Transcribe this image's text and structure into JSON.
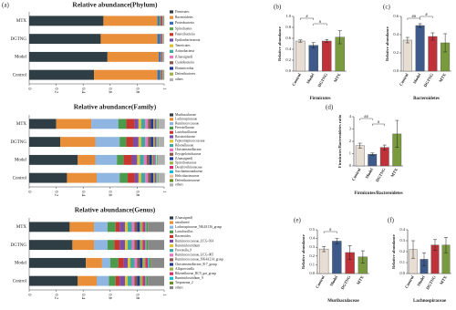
{
  "chart_data": [
    {
      "type": "stacked_barh",
      "label": "(a)",
      "title": "Relative abundance(Phylum)",
      "categories": [
        "MTX",
        "DGTNG",
        "Model",
        "Control"
      ],
      "xlim": [
        0,
        1
      ],
      "xticks": [
        0,
        0.2,
        0.4,
        0.6,
        0.8,
        1
      ],
      "series": [
        {
          "name": "Firmicutes",
          "color": "#2e3e44",
          "values": [
            0.55,
            0.53,
            0.58,
            0.48
          ]
        },
        {
          "name": "Bacteroidetes",
          "color": "#e98f3a",
          "values": [
            0.4,
            0.42,
            0.38,
            0.47
          ]
        },
        {
          "name": "Proteobacteria",
          "color": "#3b6fb6",
          "values": [
            0.015,
            0.02,
            0.015,
            0.02
          ]
        },
        {
          "name": "Spirochaetes",
          "color": "#5fa858",
          "values": [
            0.01,
            0.005,
            0.004,
            0.008
          ]
        },
        {
          "name": "Patescibacteria",
          "color": "#c8372d",
          "values": [
            0.008,
            0.006,
            0.006,
            0.006
          ]
        },
        {
          "name": "Epsilonbacteraeota",
          "color": "#7b4ea3",
          "values": [
            0.006,
            0.006,
            0.004,
            0.005
          ]
        },
        {
          "name": "Tenericutes",
          "color": "#d8c43a",
          "values": [
            0.004,
            0.004,
            0.003,
            0.004
          ]
        },
        {
          "name": "Actinobacteria",
          "color": "#3fa8a0",
          "values": [
            0.003,
            0.003,
            0.003,
            0.003
          ]
        },
        {
          "name": "(Unassigned)",
          "color": "#e377c2",
          "values": [
            0.002,
            0.002,
            0.002,
            0.002
          ]
        },
        {
          "name": "Cyanobacteria",
          "color": "#8c564b",
          "values": [
            0.001,
            0.001,
            0.001,
            0.001
          ]
        },
        {
          "name": "Elusimicrobia",
          "color": "#1f3a93",
          "values": [
            0.001,
            0.001,
            0.001,
            0.001
          ]
        },
        {
          "name": "Deferribacteres",
          "color": "#9fb04a",
          "values": [
            0.001,
            0.001,
            0.001,
            0.001
          ]
        },
        {
          "name": "others",
          "color": "#b0b0b0",
          "values": [
            0.001,
            0.001,
            0.001,
            0.001
          ]
        }
      ]
    },
    {
      "type": "stacked_barh",
      "title": "Relative abundance(Family)",
      "categories": [
        "MTX",
        "DGTNG",
        "Model",
        "Control"
      ],
      "xlim": [
        0,
        1
      ],
      "xticks": [
        0,
        0.2,
        0.4,
        0.6,
        0.8,
        1
      ],
      "series": [
        {
          "name": "Muribaculaceae",
          "color": "#2e3e44",
          "values": [
            0.2,
            0.23,
            0.36,
            0.28
          ]
        },
        {
          "name": "Lachnospiraceae",
          "color": "#e98f3a",
          "values": [
            0.26,
            0.26,
            0.13,
            0.22
          ]
        },
        {
          "name": "Ruminococcaceae",
          "color": "#8fb6e0",
          "values": [
            0.2,
            0.18,
            0.16,
            0.17
          ]
        },
        {
          "name": "Prevotellaceae",
          "color": "#4c9a4c",
          "values": [
            0.06,
            0.05,
            0.05,
            0.06
          ]
        },
        {
          "name": "Lactobacillaceae",
          "color": "#c8372d",
          "values": [
            0.06,
            0.05,
            0.06,
            0.05
          ]
        },
        {
          "name": "Bacteroidaceae",
          "color": "#7b4ea3",
          "values": [
            0.03,
            0.04,
            0.04,
            0.03
          ]
        },
        {
          "name": "Peptostreptococcaceae",
          "color": "#d8c43a",
          "values": [
            0.02,
            0.02,
            0.02,
            0.02
          ]
        },
        {
          "name": "Rikenellaceae",
          "color": "#3fa8a0",
          "values": [
            0.03,
            0.03,
            0.03,
            0.03
          ]
        },
        {
          "name": "Christensenellaceae",
          "color": "#e377c2",
          "values": [
            0.02,
            0.02,
            0.02,
            0.02
          ]
        },
        {
          "name": "Erysipelotrichaceae",
          "color": "#8c564b",
          "values": [
            0.02,
            0.02,
            0.02,
            0.02
          ]
        },
        {
          "name": "(Unassigned)",
          "color": "#1f3a93",
          "values": [
            0.02,
            0.02,
            0.02,
            0.02
          ]
        },
        {
          "name": "Spirochaetaceae",
          "color": "#9fb04a",
          "values": [
            0.01,
            0.01,
            0.01,
            0.01
          ]
        },
        {
          "name": "Desulfovibrionaceae",
          "color": "#d62f6e",
          "values": [
            0.01,
            0.01,
            0.01,
            0.01
          ]
        },
        {
          "name": "Saccharimonadaceae",
          "color": "#17becf",
          "values": [
            0.01,
            0.01,
            0.01,
            0.01
          ]
        },
        {
          "name": "Helicobacteraceae",
          "color": "#f2b8a0",
          "values": [
            0.005,
            0.005,
            0.005,
            0.005
          ]
        },
        {
          "name": "Deferribacteraceae",
          "color": "#6b8e23",
          "values": [
            0.005,
            0.005,
            0.005,
            0.005
          ]
        },
        {
          "name": "others",
          "color": "#b0b0b0",
          "values": [
            0.045,
            0.04,
            0.055,
            0.045
          ]
        }
      ]
    },
    {
      "type": "stacked_barh",
      "title": "Relative abundance(Genus)",
      "categories": [
        "MTX",
        "DGTNG",
        "Model",
        "Control"
      ],
      "xlim": [
        0,
        1
      ],
      "xticks": [
        0,
        0.2,
        0.4,
        0.6,
        0.8,
        1
      ],
      "series": [
        {
          "name": "(Unassigned)",
          "color": "#2e3e44",
          "values": [
            0.3,
            0.32,
            0.42,
            0.36
          ]
        },
        {
          "name": "uncultured",
          "color": "#e98f3a",
          "values": [
            0.18,
            0.16,
            0.12,
            0.14
          ]
        },
        {
          "name": "Lachnospiraceae_NK4A136_group",
          "color": "#8fb6e0",
          "values": [
            0.1,
            0.1,
            0.06,
            0.09
          ]
        },
        {
          "name": "Lactobacillus",
          "color": "#4c9a4c",
          "values": [
            0.06,
            0.05,
            0.06,
            0.05
          ]
        },
        {
          "name": "Bacteroides",
          "color": "#c8372d",
          "values": [
            0.03,
            0.04,
            0.04,
            0.03
          ]
        },
        {
          "name": "Ruminococcaceae_UCG-014",
          "color": "#7b4ea3",
          "values": [
            0.04,
            0.04,
            0.03,
            0.04
          ]
        },
        {
          "name": "Ruminiclostridium",
          "color": "#d8c43a",
          "values": [
            0.02,
            0.02,
            0.02,
            0.02
          ]
        },
        {
          "name": "Prevotella_9",
          "color": "#3fa8a0",
          "values": [
            0.03,
            0.03,
            0.03,
            0.03
          ]
        },
        {
          "name": "Ruminococcaceae_UCG-005",
          "color": "#e377c2",
          "values": [
            0.02,
            0.02,
            0.02,
            0.02
          ]
        },
        {
          "name": "Ruminococcaceae_NK4A214_group",
          "color": "#8c564b",
          "values": [
            0.02,
            0.02,
            0.02,
            0.02
          ]
        },
        {
          "name": "Christensenellaceae_R-7_group",
          "color": "#1f3a93",
          "values": [
            0.02,
            0.02,
            0.02,
            0.02
          ]
        },
        {
          "name": "Alloprevotella",
          "color": "#9fb04a",
          "values": [
            0.02,
            0.02,
            0.02,
            0.02
          ]
        },
        {
          "name": "Rikenellaceae_RC9_gut_group",
          "color": "#d62f6e",
          "values": [
            0.02,
            0.02,
            0.02,
            0.02
          ]
        },
        {
          "name": "Ruminiclostridium_9",
          "color": "#17becf",
          "values": [
            0.01,
            0.01,
            0.01,
            0.01
          ]
        },
        {
          "name": "Treponema_2",
          "color": "#6b8e23",
          "values": [
            0.01,
            0.01,
            0.01,
            0.01
          ]
        },
        {
          "name": "others",
          "color": "#888888",
          "values": [
            0.12,
            0.12,
            0.1,
            0.12
          ]
        }
      ]
    },
    {
      "type": "bar",
      "label": "(b)",
      "xlabel": "Firmicutes",
      "ylabel": "Relative abundance",
      "categories": [
        "Control",
        "Model",
        "DGTNG",
        "MTX"
      ],
      "values": [
        0.55,
        0.47,
        0.55,
        0.62
      ],
      "errors": [
        0.02,
        0.05,
        0.03,
        0.12
      ],
      "colors": [
        "#e8ddd3",
        "#3d5a8a",
        "#c0323a",
        "#7a9a3e"
      ],
      "ylim": [
        0,
        1
      ],
      "yticks": [
        {
          "value": 0,
          "label": "0.0"
        },
        0.2,
        0.4,
        0.6,
        0.8,
        {
          "value": 1,
          "label": "1.0"
        }
      ],
      "significance": [
        {
          "label": "#",
          "from": "Control",
          "to": "Model"
        },
        {
          "label": "#",
          "from": "Model",
          "to": "DGTNG"
        }
      ]
    },
    {
      "type": "bar",
      "label": "(c)",
      "xlabel": "Bacteroidetes",
      "ylabel": "Relative abundance",
      "categories": [
        "Control",
        "Model",
        "DGTNG",
        "MTX"
      ],
      "values": [
        0.34,
        0.5,
        0.38,
        0.31
      ],
      "errors": [
        0.03,
        0.02,
        0.04,
        0.1
      ],
      "colors": [
        "#e8ddd3",
        "#3d5a8a",
        "#c0323a",
        "#7a9a3e"
      ],
      "ylim": [
        0,
        0.6
      ],
      "yticks": [
        {
          "value": 0,
          "label": "0.0"
        },
        0.2,
        0.4,
        0.6
      ],
      "significance": [
        {
          "label": "##",
          "from": "Control",
          "to": "Model"
        },
        {
          "label": "#",
          "from": "Model",
          "to": "DGTNG"
        }
      ]
    },
    {
      "type": "bar",
      "label": "(d)",
      "xlabel": "Firmicutes/Bacteroidetes",
      "ylabel": "Firmicutes/Bacteroidetes ratio",
      "categories": [
        "Control",
        "Model",
        "DGTNG",
        "MTX"
      ],
      "values": [
        1.65,
        0.95,
        1.5,
        2.6
      ],
      "errors": [
        0.2,
        0.1,
        0.2,
        1.1
      ],
      "colors": [
        "#e8ddd3",
        "#3d5a8a",
        "#c0323a",
        "#7a9a3e"
      ],
      "ylim": [
        0,
        4
      ],
      "yticks": [
        0,
        1,
        2,
        3,
        4
      ],
      "significance": [
        {
          "label": "##",
          "from": "Control",
          "to": "Model"
        },
        {
          "label": "#",
          "from": "Model",
          "to": "DGTNG"
        }
      ]
    },
    {
      "type": "bar",
      "label": "(e)",
      "xlabel": "Muribaculaceae",
      "ylabel": "Relative abundance",
      "categories": [
        "Control",
        "Model",
        "DGTNG",
        "MTX"
      ],
      "values": [
        0.28,
        0.37,
        0.24,
        0.19
      ],
      "errors": [
        0.03,
        0.03,
        0.08,
        0.07
      ],
      "colors": [
        "#e8ddd3",
        "#3d5a8a",
        "#c0323a",
        "#7a9a3e"
      ],
      "ylim": [
        0,
        0.5
      ],
      "yticks": [
        {
          "value": 0,
          "label": "0.0"
        },
        0.1,
        0.2,
        0.3,
        0.4,
        0.5
      ],
      "significance": [
        {
          "label": "#",
          "from": "Control",
          "to": "Model"
        }
      ]
    },
    {
      "type": "bar",
      "label": "(f)",
      "xlabel": "Lachnospiraceae",
      "ylabel": "Relative abundance",
      "categories": [
        "Control",
        "Model",
        "DGTNG",
        "MTX"
      ],
      "values": [
        0.22,
        0.13,
        0.26,
        0.26
      ],
      "errors": [
        0.08,
        0.06,
        0.05,
        0.07
      ],
      "colors": [
        "#e8ddd3",
        "#3d5a8a",
        "#c0323a",
        "#7a9a3e"
      ],
      "ylim": [
        0,
        0.4
      ],
      "yticks": [
        {
          "value": 0,
          "label": "0.0"
        },
        0.1,
        0.2,
        0.3,
        0.4
      ],
      "significance": []
    }
  ]
}
